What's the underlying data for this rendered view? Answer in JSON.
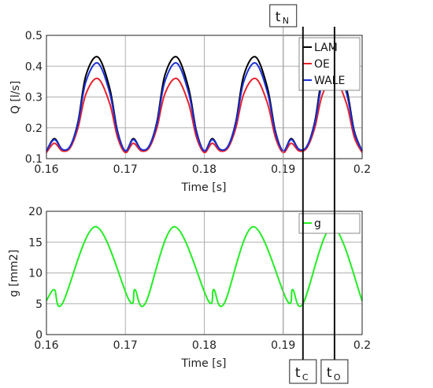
{
  "chart_data": [
    {
      "type": "line",
      "xlabel": "Time [s]",
      "ylabel": "Q [l/s]",
      "xlim": [
        0.16,
        0.2
      ],
      "ylim": [
        0.1,
        0.5
      ],
      "xticks": [
        "0.16",
        "0.17",
        "0.18",
        "0.19",
        "0.2"
      ],
      "yticks": [
        "0.1",
        "0.2",
        "0.3",
        "0.4",
        "0.5"
      ],
      "grid": true,
      "legend_position": "top-right",
      "series": [
        {
          "name": "LAM",
          "color": "#000000",
          "x": [
            0.16,
            0.161,
            0.162,
            0.163,
            0.164,
            0.165,
            0.1665,
            0.168,
            0.169,
            0.17,
            0.171,
            0.172,
            0.173,
            0.174,
            0.175,
            0.1765,
            0.178,
            0.179,
            0.18,
            0.181,
            0.182,
            0.183,
            0.184,
            0.185,
            0.1865,
            0.188,
            0.189,
            0.19,
            0.191,
            0.192,
            0.193,
            0.194,
            0.195,
            0.1965,
            0.198,
            0.199,
            0.2
          ],
          "y": [
            0.125,
            0.165,
            0.13,
            0.14,
            0.22,
            0.37,
            0.43,
            0.33,
            0.19,
            0.125,
            0.165,
            0.13,
            0.14,
            0.22,
            0.37,
            0.43,
            0.33,
            0.19,
            0.125,
            0.165,
            0.13,
            0.14,
            0.22,
            0.37,
            0.43,
            0.33,
            0.19,
            0.125,
            0.165,
            0.13,
            0.14,
            0.22,
            0.37,
            0.43,
            0.33,
            0.19,
            0.125
          ]
        },
        {
          "name": "OE",
          "color": "#e8202a",
          "x": [
            0.16,
            0.161,
            0.162,
            0.163,
            0.164,
            0.165,
            0.1665,
            0.168,
            0.169,
            0.17,
            0.171,
            0.172,
            0.173,
            0.174,
            0.175,
            0.1765,
            0.178,
            0.179,
            0.18,
            0.181,
            0.182,
            0.183,
            0.184,
            0.185,
            0.1865,
            0.188,
            0.189,
            0.19,
            0.191,
            0.192,
            0.193,
            0.194,
            0.195,
            0.1965,
            0.198,
            0.199,
            0.2
          ],
          "y": [
            0.12,
            0.15,
            0.125,
            0.135,
            0.2,
            0.31,
            0.36,
            0.28,
            0.17,
            0.12,
            0.15,
            0.125,
            0.135,
            0.2,
            0.31,
            0.36,
            0.28,
            0.17,
            0.12,
            0.15,
            0.125,
            0.135,
            0.2,
            0.31,
            0.36,
            0.28,
            0.17,
            0.12,
            0.15,
            0.125,
            0.135,
            0.2,
            0.31,
            0.36,
            0.28,
            0.17,
            0.12
          ]
        },
        {
          "name": "WALE",
          "color": "#1a2fd8",
          "x": [
            0.16,
            0.161,
            0.162,
            0.163,
            0.164,
            0.165,
            0.1665,
            0.168,
            0.169,
            0.17,
            0.171,
            0.172,
            0.173,
            0.174,
            0.175,
            0.1765,
            0.178,
            0.179,
            0.18,
            0.181,
            0.182,
            0.183,
            0.184,
            0.185,
            0.1865,
            0.188,
            0.189,
            0.19,
            0.191,
            0.192,
            0.193,
            0.194,
            0.195,
            0.1965,
            0.198,
            0.199,
            0.2
          ],
          "y": [
            0.125,
            0.162,
            0.13,
            0.14,
            0.215,
            0.35,
            0.41,
            0.315,
            0.185,
            0.125,
            0.162,
            0.13,
            0.14,
            0.215,
            0.35,
            0.41,
            0.315,
            0.185,
            0.125,
            0.162,
            0.13,
            0.14,
            0.215,
            0.35,
            0.41,
            0.315,
            0.185,
            0.125,
            0.162,
            0.13,
            0.14,
            0.215,
            0.35,
            0.41,
            0.315,
            0.185,
            0.125
          ]
        }
      ]
    },
    {
      "type": "line",
      "xlabel": "Time [s]",
      "ylabel": "g [mm2]",
      "xlim": [
        0.16,
        0.2
      ],
      "ylim": [
        0,
        20
      ],
      "xticks": [
        "0.16",
        "0.17",
        "0.18",
        "0.19",
        "0.2"
      ],
      "yticks": [
        "0",
        "5",
        "10",
        "15",
        "20"
      ],
      "grid": true,
      "legend_position": "top-right",
      "series": [
        {
          "name": "g",
          "color": "#22ee22",
          "x": [
            0.16,
            0.161,
            0.162,
            0.1662,
            0.1705,
            0.1712,
            0.1725,
            0.1762,
            0.1805,
            0.1812,
            0.1825,
            0.1862,
            0.1905,
            0.1912,
            0.1925,
            0.1962,
            0.2
          ],
          "y": [
            5.5,
            7.3,
            5.0,
            17.5,
            5.5,
            7.3,
            5.0,
            17.5,
            5.5,
            7.3,
            5.0,
            17.5,
            5.5,
            7.3,
            5.0,
            17.5,
            5.5
          ]
        }
      ]
    }
  ],
  "markers": [
    {
      "main": "t",
      "sub": "N",
      "x": 0.19
    },
    {
      "main": "t",
      "sub": "C",
      "x": 0.1925
    },
    {
      "main": "t",
      "sub": "O",
      "x": 0.1965
    }
  ],
  "colors": {
    "grid": "#b0b0b0",
    "frame": "#222222"
  }
}
